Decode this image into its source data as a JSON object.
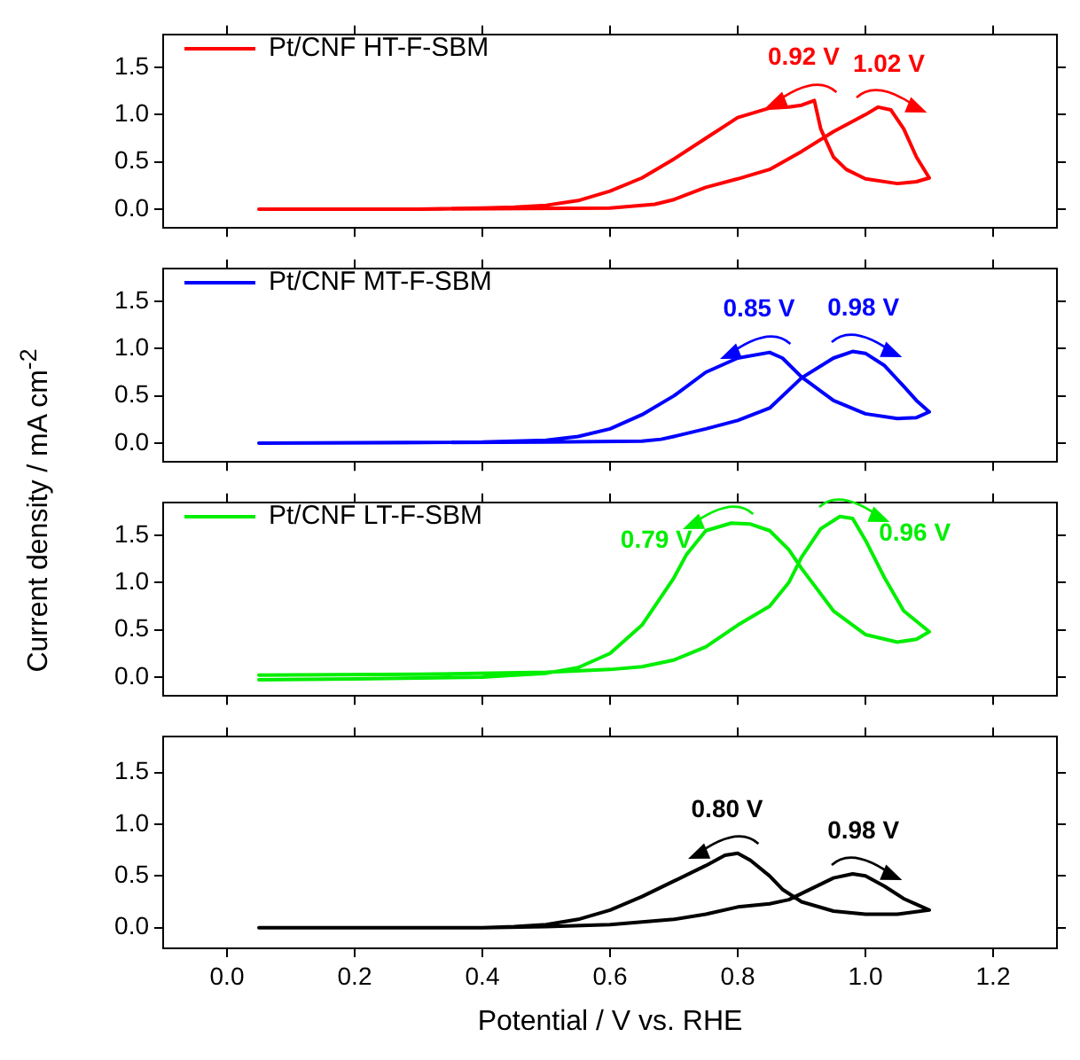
{
  "chart_data": [
    {
      "type": "line",
      "ylabel": "Current density / mA cm$^{-2}$",
      "legend": "top left",
      "tick_labels": "y",
      "xlim": [
        -0.1,
        1.3
      ],
      "ylim": [
        -0.2,
        1.85
      ],
      "xticks": [
        {
          "value": 0,
          "label": null
        },
        {
          "value": 0.2,
          "label": null
        },
        {
          "value": 0.4,
          "label": null
        },
        {
          "value": 0.6,
          "label": null
        },
        {
          "value": 0.8,
          "label": null
        },
        {
          "value": 1,
          "label": null
        },
        {
          "value": 1.2,
          "label": null
        }
      ],
      "yticks": [
        {
          "value": 0,
          "label": "0.0"
        },
        {
          "value": 0.5,
          "label": "0.5"
        },
        {
          "value": 1,
          "label": "1.0"
        },
        {
          "value": 1.5,
          "label": "1.5"
        }
      ],
      "series": [
        {
          "name": "Pt/CNF HT-F-SBM",
          "color": "#ff0000",
          "x": [
            0.05,
            0.3,
            0.6,
            0.67,
            0.7,
            0.75,
            0.8,
            0.85,
            0.9,
            0.95,
            1.0,
            1.02,
            1.04,
            1.06,
            1.08,
            1.1,
            1.08,
            1.05,
            1.0,
            0.97,
            0.95,
            0.93,
            0.92,
            0.9,
            0.88,
            0.85,
            0.8,
            0.75,
            0.7,
            0.65,
            0.6,
            0.55,
            0.5,
            0.45,
            0.4,
            0.3,
            0.2,
            0.06
          ],
          "values": [
            0,
            0,
            0.01,
            0.05,
            0.1,
            0.23,
            0.32,
            0.42,
            0.61,
            0.82,
            1.0,
            1.08,
            1.05,
            0.85,
            0.55,
            0.33,
            0.29,
            0.27,
            0.32,
            0.42,
            0.55,
            0.85,
            1.15,
            1.1,
            1.08,
            1.07,
            0.97,
            0.75,
            0.53,
            0.33,
            0.19,
            0.09,
            0.04,
            0.02,
            0.01,
            0,
            0,
            0
          ]
        }
      ],
      "annotations": [
        {
          "text": "0.92 V",
          "x": 0.92,
          "y": 1.15
        },
        {
          "text": "1.02 V",
          "x": 1.02,
          "y": 1.08
        }
      ]
    },
    {
      "type": "line",
      "legend": "top left",
      "tick_labels": "y",
      "xlim": [
        -0.1,
        1.3
      ],
      "ylim": [
        -0.2,
        1.85
      ],
      "xticks": [
        {
          "value": 0,
          "label": null
        },
        {
          "value": 0.2,
          "label": null
        },
        {
          "value": 0.4,
          "label": null
        },
        {
          "value": 0.6,
          "label": null
        },
        {
          "value": 0.8,
          "label": null
        },
        {
          "value": 1,
          "label": null
        },
        {
          "value": 1.2,
          "label": null
        }
      ],
      "yticks": [
        {
          "value": 0,
          "label": "0.0"
        },
        {
          "value": 0.5,
          "label": "0.5"
        },
        {
          "value": 1,
          "label": "1.0"
        },
        {
          "value": 1.5,
          "label": "1.5"
        }
      ],
      "series": [
        {
          "name": "Pt/CNF MT-F-SBM",
          "color": "#0000ff",
          "x": [
            0.05,
            0.5,
            0.65,
            0.68,
            0.7,
            0.75,
            0.8,
            0.85,
            0.9,
            0.95,
            0.98,
            1.0,
            1.03,
            1.06,
            1.08,
            1.1,
            1.08,
            1.05,
            1.0,
            0.95,
            0.9,
            0.87,
            0.85,
            0.8,
            0.75,
            0.7,
            0.65,
            0.6,
            0.55,
            0.5,
            0.4,
            0.06
          ],
          "values": [
            0,
            0.01,
            0.02,
            0.04,
            0.07,
            0.15,
            0.24,
            0.37,
            0.69,
            0.9,
            0.97,
            0.95,
            0.82,
            0.6,
            0.45,
            0.33,
            0.27,
            0.26,
            0.31,
            0.45,
            0.7,
            0.9,
            0.96,
            0.9,
            0.75,
            0.5,
            0.3,
            0.15,
            0.07,
            0.03,
            0.01,
            0
          ]
        }
      ],
      "annotations": [
        {
          "text": "0.85 V",
          "x": 0.85,
          "y": 0.96
        },
        {
          "text": "0.98 V",
          "x": 0.98,
          "y": 0.97
        }
      ]
    },
    {
      "type": "line",
      "legend": "top left",
      "tick_labels": "y",
      "xlim": [
        -0.1,
        1.3
      ],
      "ylim": [
        -0.2,
        1.85
      ],
      "xticks": [
        {
          "value": 0,
          "label": null
        },
        {
          "value": 0.2,
          "label": null
        },
        {
          "value": 0.4,
          "label": null
        },
        {
          "value": 0.6,
          "label": null
        },
        {
          "value": 0.8,
          "label": null
        },
        {
          "value": 1,
          "label": null
        },
        {
          "value": 1.2,
          "label": null
        }
      ],
      "yticks": [
        {
          "value": 0,
          "label": "0.0"
        },
        {
          "value": 0.5,
          "label": "0.5"
        },
        {
          "value": 1,
          "label": "1.0"
        },
        {
          "value": 1.5,
          "label": "1.5"
        }
      ],
      "series": [
        {
          "name": "Pt/CNF LT-F-SBM",
          "color": "#00ee00",
          "x": [
            0.05,
            0.3,
            0.5,
            0.6,
            0.65,
            0.7,
            0.75,
            0.8,
            0.85,
            0.88,
            0.9,
            0.93,
            0.96,
            0.98,
            1.0,
            1.03,
            1.06,
            1.1,
            1.08,
            1.05,
            1.0,
            0.95,
            0.9,
            0.88,
            0.85,
            0.82,
            0.79,
            0.75,
            0.72,
            0.7,
            0.65,
            0.6,
            0.55,
            0.5,
            0.4,
            0.2,
            0.05
          ],
          "values": [
            0.02,
            0.03,
            0.05,
            0.08,
            0.11,
            0.18,
            0.32,
            0.55,
            0.75,
            1.0,
            1.27,
            1.57,
            1.7,
            1.68,
            1.45,
            1.05,
            0.7,
            0.48,
            0.4,
            0.37,
            0.45,
            0.7,
            1.15,
            1.35,
            1.55,
            1.62,
            1.63,
            1.55,
            1.3,
            1.05,
            0.55,
            0.25,
            0.1,
            0.04,
            0,
            -0.02,
            -0.03
          ]
        }
      ],
      "annotations": [
        {
          "text": "0.79 V",
          "x": 0.79,
          "y": 1.63
        },
        {
          "text": "0.96 V",
          "x": 0.96,
          "y": 1.7
        }
      ]
    },
    {
      "type": "line",
      "xlabel": "Potential / V vs. RHE",
      "xlim": [
        -0.1,
        1.3
      ],
      "ylim": [
        -0.2,
        1.85
      ],
      "xticks": [
        {
          "value": 0,
          "label": "0.0"
        },
        {
          "value": 0.2,
          "label": "0.2"
        },
        {
          "value": 0.4,
          "label": "0.4"
        },
        {
          "value": 0.6,
          "label": "0.6"
        },
        {
          "value": 0.8,
          "label": "0.8"
        },
        {
          "value": 1,
          "label": "1.0"
        },
        {
          "value": 1.2,
          "label": "1.2"
        }
      ],
      "yticks": [
        {
          "value": 0,
          "label": "0.0"
        },
        {
          "value": 0.5,
          "label": "0.5"
        },
        {
          "value": 1,
          "label": "1.0"
        },
        {
          "value": 1.5,
          "label": "1.5"
        }
      ],
      "series": [
        {
          "color": "#000000",
          "x": [
            0.05,
            0.4,
            0.5,
            0.6,
            0.7,
            0.75,
            0.8,
            0.85,
            0.88,
            0.9,
            0.95,
            0.98,
            1.0,
            1.03,
            1.06,
            1.1,
            1.05,
            1.0,
            0.95,
            0.9,
            0.87,
            0.85,
            0.82,
            0.8,
            0.78,
            0.75,
            0.7,
            0.65,
            0.6,
            0.55,
            0.5,
            0.45,
            0.4,
            0.06
          ],
          "values": [
            0,
            0,
            0.01,
            0.03,
            0.08,
            0.13,
            0.2,
            0.23,
            0.27,
            0.33,
            0.48,
            0.52,
            0.5,
            0.4,
            0.28,
            0.17,
            0.13,
            0.13,
            0.16,
            0.25,
            0.37,
            0.5,
            0.65,
            0.72,
            0.7,
            0.6,
            0.45,
            0.3,
            0.17,
            0.08,
            0.03,
            0.01,
            0,
            0
          ]
        }
      ],
      "annotations": [
        {
          "text": "0.80 V",
          "x": 0.8,
          "y": 0.72
        },
        {
          "text": "0.98 V",
          "x": 0.98,
          "y": 0.52
        }
      ]
    }
  ]
}
